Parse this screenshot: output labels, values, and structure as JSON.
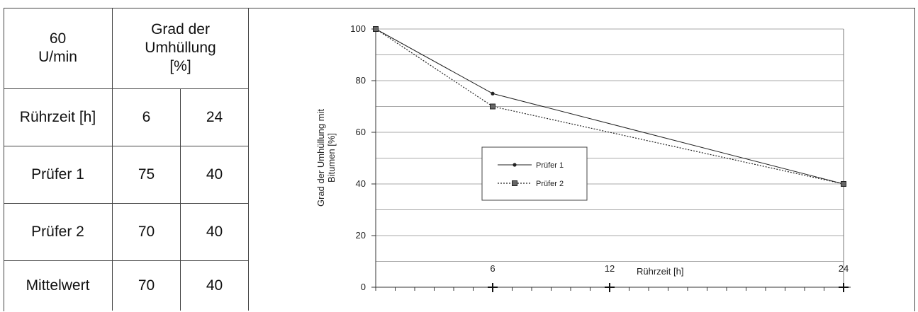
{
  "table": {
    "corner_line1": "60",
    "corner_line2": "U/min",
    "header_line1": "Grad der",
    "header_line2": "Umhüllung",
    "header_line3": "[%]",
    "rows": [
      {
        "label": "Rührzeit [h]",
        "v6": "6",
        "v24": "24"
      },
      {
        "label": "Prüfer 1",
        "v6": "75",
        "v24": "40"
      },
      {
        "label": "Prüfer 2",
        "v6": "70",
        "v24": "40"
      },
      {
        "label": "Mittelwert",
        "v6": "70",
        "v24": "40"
      }
    ]
  },
  "chart_data": {
    "type": "line",
    "title": "",
    "xlabel": "Rührzeit [h]",
    "ylabel_line1": "Grad der Umhüllung mit",
    "ylabel_line2": "Bitumen [%]",
    "xlim": [
      0,
      24
    ],
    "ylim": [
      0,
      100
    ],
    "x_ticks": [
      6,
      12,
      24
    ],
    "x_tick_labels": [
      "6",
      "12",
      "24"
    ],
    "y_ticks": [
      0,
      20,
      40,
      60,
      80,
      100
    ],
    "y_tick_labels": [
      "0",
      "20",
      "40",
      "60",
      "80",
      "100"
    ],
    "grid": "horizontal",
    "legend_position": "center-left",
    "series": [
      {
        "name": "Prüfer 1",
        "x": [
          0,
          6,
          24
        ],
        "y": [
          100,
          75,
          40
        ],
        "line": "solid",
        "marker": "dot"
      },
      {
        "name": "Prüfer 2",
        "x": [
          0,
          6,
          24
        ],
        "y": [
          100,
          70,
          40
        ],
        "line": "dotted",
        "marker": "square"
      }
    ]
  }
}
